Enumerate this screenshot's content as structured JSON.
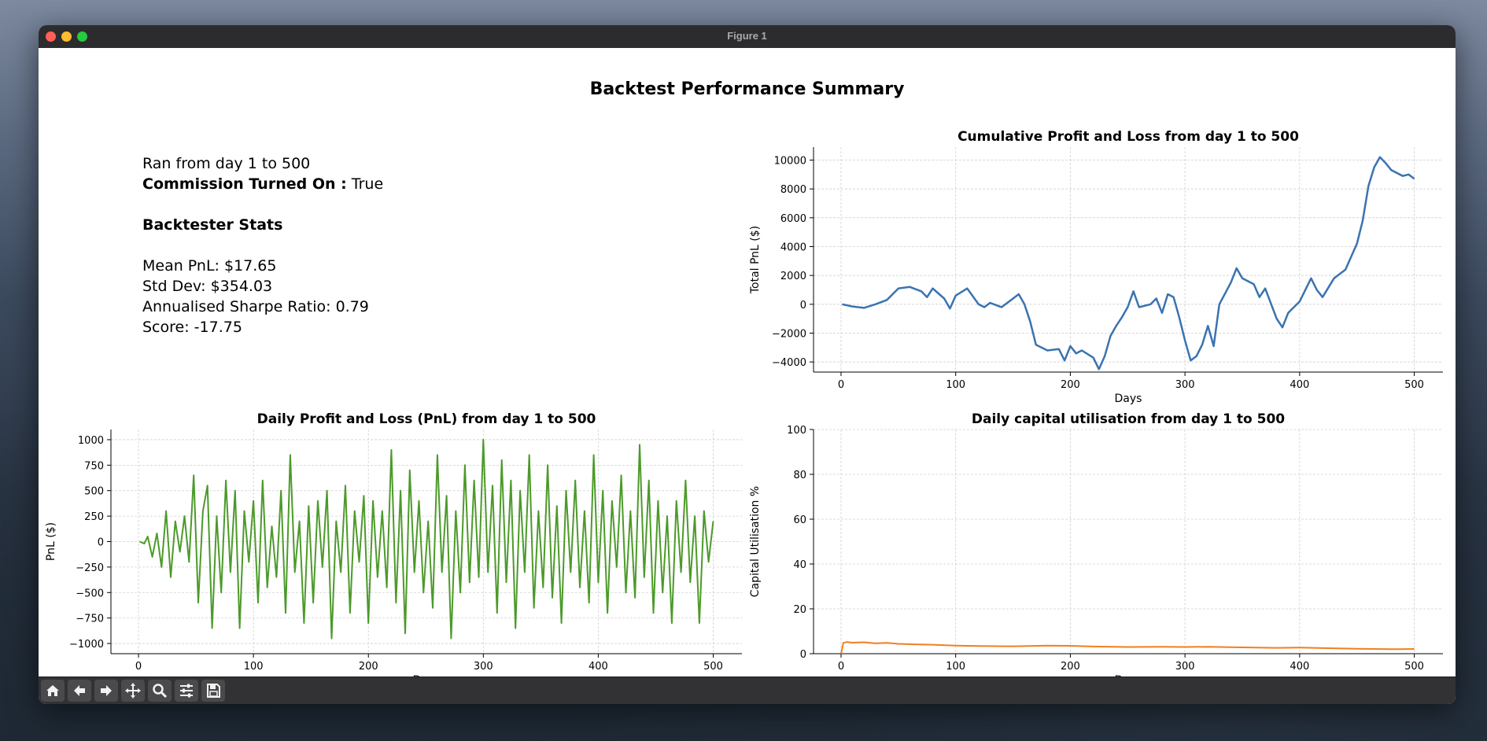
{
  "window": {
    "title": "Figure 1"
  },
  "figure": {
    "suptitle": "Backtest Performance Summary"
  },
  "info": {
    "run_range": "Ran from day 1 to 500",
    "commission_label": "Commission Turned On :",
    "commission_value": "True",
    "stats_heading": "Backtester Stats",
    "mean_pnl": "Mean PnL: $17.65",
    "std_dev": "Std Dev: $354.03",
    "sharpe": "Annualised Sharpe Ratio: 0.79",
    "score": "Score: -17.75"
  },
  "toolbar": {
    "buttons": [
      "home-icon",
      "back-arrow-icon",
      "forward-arrow-icon",
      "pan-icon",
      "zoom-icon",
      "configure-subplots-icon",
      "save-icon"
    ]
  },
  "chart_data": [
    {
      "id": "cumulative",
      "type": "line",
      "title": "Cumulative Profit and Loss from day 1 to 500",
      "xlabel": "Days",
      "ylabel": "Total PnL ($)",
      "xlim": [
        -24,
        525
      ],
      "ylim": [
        -4700,
        10900
      ],
      "xticks": [
        0,
        100,
        200,
        300,
        400,
        500
      ],
      "yticks": [
        -4000,
        -2000,
        0,
        2000,
        4000,
        6000,
        8000,
        10000
      ],
      "color": "#3a73b0",
      "grid": true,
      "series": [
        {
          "x": [
            1,
            10,
            20,
            30,
            40,
            50,
            60,
            70,
            75,
            80,
            90,
            95,
            100,
            110,
            120,
            125,
            130,
            140,
            150,
            155,
            160,
            165,
            170,
            180,
            190,
            195,
            200,
            205,
            210,
            220,
            225,
            230,
            235,
            240,
            245,
            250,
            255,
            260,
            270,
            275,
            280,
            285,
            290,
            295,
            300,
            305,
            310,
            315,
            320,
            325,
            330,
            340,
            345,
            350,
            360,
            365,
            370,
            380,
            385,
            390,
            400,
            410,
            415,
            420,
            430,
            440,
            450,
            455,
            460,
            465,
            470,
            475,
            480,
            490,
            495,
            500
          ],
          "y": [
            0,
            -150,
            -250,
            0,
            300,
            1100,
            1200,
            900,
            500,
            1100,
            400,
            -300,
            600,
            1100,
            0,
            -200,
            100,
            -200,
            400,
            700,
            0,
            -1200,
            -2800,
            -3200,
            -3100,
            -3900,
            -2900,
            -3400,
            -3200,
            -3700,
            -4500,
            -3600,
            -2200,
            -1500,
            -900,
            -200,
            900,
            -200,
            0,
            400,
            -600,
            700,
            500,
            -900,
            -2500,
            -3900,
            -3600,
            -2800,
            -1500,
            -2900,
            0,
            1500,
            2500,
            1800,
            1400,
            500,
            1100,
            -1000,
            -1600,
            -600,
            200,
            1800,
            1000,
            500,
            1800,
            2400,
            4200,
            5800,
            8200,
            9500,
            10200,
            9800,
            9300,
            8900,
            9000,
            8700
          ]
        }
      ]
    },
    {
      "id": "daily",
      "type": "line",
      "title": "Daily Profit and Loss (PnL) from day 1 to 500",
      "xlabel": "Days",
      "ylabel": "PnL ($)",
      "xlim": [
        -24,
        525
      ],
      "ylim": [
        -1100,
        1100
      ],
      "xticks": [
        0,
        100,
        200,
        300,
        400,
        500
      ],
      "yticks": [
        -1000,
        -750,
        -500,
        -250,
        0,
        250,
        500,
        750,
        1000
      ],
      "color": "#4c9a2a",
      "grid": true,
      "series": [
        {
          "x": [
            1,
            5,
            8,
            12,
            16,
            20,
            24,
            28,
            32,
            36,
            40,
            44,
            48,
            52,
            56,
            60,
            64,
            68,
            72,
            76,
            80,
            84,
            88,
            92,
            96,
            100,
            104,
            108,
            112,
            116,
            120,
            124,
            128,
            132,
            136,
            140,
            144,
            148,
            152,
            156,
            160,
            164,
            168,
            172,
            176,
            180,
            184,
            188,
            192,
            196,
            200,
            204,
            208,
            212,
            216,
            220,
            224,
            228,
            232,
            236,
            240,
            244,
            248,
            252,
            256,
            260,
            264,
            268,
            272,
            276,
            280,
            284,
            288,
            292,
            296,
            300,
            304,
            308,
            312,
            316,
            320,
            324,
            328,
            332,
            336,
            340,
            344,
            348,
            352,
            356,
            360,
            364,
            368,
            372,
            376,
            380,
            384,
            388,
            392,
            396,
            400,
            404,
            408,
            412,
            416,
            420,
            424,
            428,
            432,
            436,
            440,
            444,
            448,
            452,
            456,
            460,
            464,
            468,
            472,
            476,
            480,
            484,
            488,
            492,
            496,
            500
          ],
          "y": [
            0,
            -20,
            50,
            -150,
            80,
            -250,
            300,
            -350,
            200,
            -100,
            250,
            -200,
            650,
            -600,
            300,
            550,
            -850,
            250,
            -500,
            600,
            -300,
            500,
            -850,
            300,
            -200,
            400,
            -600,
            600,
            -450,
            150,
            -350,
            500,
            -700,
            850,
            -300,
            200,
            -800,
            350,
            -600,
            400,
            -250,
            500,
            -950,
            200,
            -300,
            550,
            -700,
            300,
            -200,
            450,
            -800,
            400,
            -350,
            300,
            -450,
            900,
            -600,
            500,
            -900,
            700,
            -300,
            400,
            -500,
            200,
            -650,
            850,
            -300,
            450,
            -950,
            300,
            -500,
            750,
            -400,
            600,
            -350,
            1000,
            -300,
            550,
            -700,
            800,
            -400,
            600,
            -850,
            500,
            -300,
            850,
            -650,
            300,
            -450,
            750,
            -550,
            350,
            -800,
            500,
            -300,
            600,
            -450,
            300,
            -600,
            850,
            -400,
            500,
            -700,
            400,
            -250,
            650,
            -500,
            300,
            -550,
            950,
            -350,
            600,
            -700,
            400,
            -500,
            250,
            -800,
            400,
            -300,
            600,
            -400,
            250,
            -800,
            300,
            -200,
            200
          ]
        }
      ]
    },
    {
      "id": "utilisation",
      "type": "line",
      "title": "Daily capital utilisation from day 1 to 500",
      "xlabel": "Days",
      "ylabel": "Capital Utilisation %",
      "xlim": [
        -24,
        525
      ],
      "ylim": [
        0,
        100
      ],
      "xticks": [
        0,
        100,
        200,
        300,
        400,
        500
      ],
      "yticks": [
        0,
        20,
        40,
        60,
        80,
        100
      ],
      "color": "#f07f1f",
      "grid": true,
      "series": [
        {
          "x": [
            0,
            2,
            5,
            10,
            20,
            30,
            40,
            50,
            60,
            80,
            100,
            120,
            150,
            180,
            200,
            220,
            250,
            280,
            300,
            320,
            350,
            380,
            400,
            420,
            450,
            480,
            500
          ],
          "y": [
            0,
            4.8,
            5.2,
            4.9,
            5.1,
            4.6,
            4.8,
            4.4,
            4.2,
            4.0,
            3.6,
            3.4,
            3.3,
            3.6,
            3.5,
            3.2,
            3.0,
            3.1,
            3.0,
            3.1,
            2.8,
            2.6,
            2.7,
            2.5,
            2.2,
            2.0,
            2.1
          ]
        }
      ]
    }
  ]
}
